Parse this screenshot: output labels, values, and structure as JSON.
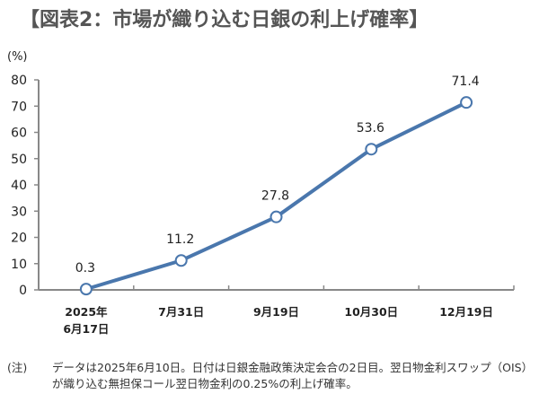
{
  "chart_data": {
    "type": "line",
    "title": "【図表2：市場が織り込む日銀の利上げ確率】",
    "ylabel": "(%)",
    "xlabel": "",
    "ylim": [
      0,
      80
    ],
    "yticks": [
      0,
      10,
      20,
      30,
      40,
      50,
      60,
      70,
      80
    ],
    "categories": [
      [
        "2025年",
        "6月17日"
      ],
      [
        "7月31日"
      ],
      [
        "9月19日"
      ],
      [
        "10月30日"
      ],
      [
        "12月19日"
      ]
    ],
    "values": [
      0.3,
      11.2,
      27.8,
      53.6,
      71.4
    ],
    "data_labels": [
      "0.3",
      "11.2",
      "27.8",
      "53.6",
      "71.4"
    ],
    "grid": false,
    "line_color": "#4a77ad"
  },
  "note": {
    "label": "(注)",
    "text": "データは2025年6月10日。日付は日銀金融政策決定会合の2日目。翌日物金利スワップ（OIS）が織り込む無担保コール翌日物金利の0.25%の利上げ確率。"
  }
}
